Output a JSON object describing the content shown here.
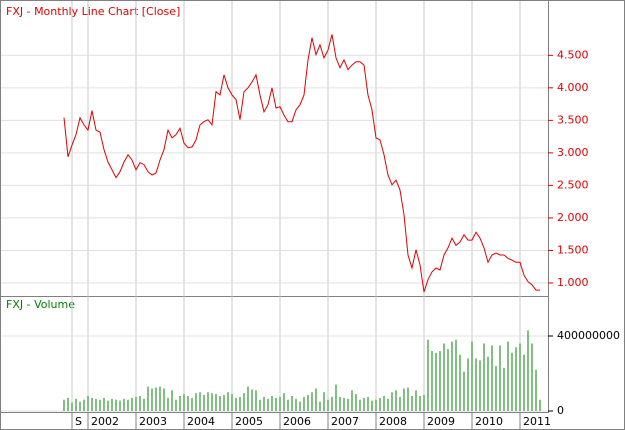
{
  "chart_data": [
    {
      "type": "line",
      "title": "FXJ - Monthly Line Chart [Close]",
      "color": "#e00000",
      "grid": true,
      "ylim": [
        0.8,
        5.35
      ],
      "yticks": [
        {
          "value": 1,
          "label": "1.000"
        },
        {
          "value": 1.5,
          "label": "1.500"
        },
        {
          "value": 2,
          "label": "2.000"
        },
        {
          "value": 2.5,
          "label": "2.500"
        },
        {
          "value": 3,
          "label": "3.000"
        },
        {
          "value": 3.5,
          "label": "3.500"
        },
        {
          "value": 4,
          "label": "4.000"
        },
        {
          "value": 4.5,
          "label": "4.500"
        }
      ],
      "values": [
        3.54,
        2.94,
        3.12,
        3.28,
        3.54,
        3.43,
        3.35,
        3.65,
        3.35,
        3.32,
        3.05,
        2.86,
        2.74,
        2.62,
        2.71,
        2.86,
        2.97,
        2.89,
        2.74,
        2.85,
        2.82,
        2.71,
        2.66,
        2.69,
        2.89,
        3.05,
        3.35,
        3.23,
        3.28,
        3.38,
        3.15,
        3.08,
        3.09,
        3.2,
        3.43,
        3.48,
        3.51,
        3.43,
        3.94,
        3.89,
        4.2,
        4.0,
        3.89,
        3.82,
        3.51,
        3.94,
        4.0,
        4.09,
        4.2,
        3.89,
        3.63,
        3.74,
        4.0,
        3.69,
        3.71,
        3.58,
        3.48,
        3.48,
        3.66,
        3.74,
        3.89,
        4.43,
        4.77,
        4.51,
        4.66,
        4.46,
        4.58,
        4.82,
        4.46,
        4.31,
        4.43,
        4.28,
        4.35,
        4.4,
        4.4,
        4.35,
        3.89,
        3.66,
        3.23,
        3.2,
        2.97,
        2.66,
        2.51,
        2.58,
        2.43,
        2.05,
        1.43,
        1.23,
        1.51,
        1.28,
        0.86,
        1.05,
        1.17,
        1.23,
        1.2,
        1.43,
        1.54,
        1.69,
        1.58,
        1.63,
        1.74,
        1.66,
        1.66,
        1.78,
        1.69,
        1.54,
        1.32,
        1.43,
        1.46,
        1.43,
        1.43,
        1.38,
        1.35,
        1.32,
        1.32,
        1.12,
        1.02,
        0.97,
        0.89,
        0.89
      ]
    },
    {
      "type": "bar",
      "title": "FXJ - Volume",
      "color": "#008000",
      "grid": true,
      "ylim": [
        0,
        600000000
      ],
      "yticks": [
        0,
        400000000
      ],
      "categories": [
        null,
        null,
        "S",
        null,
        null,
        null,
        "2002",
        null,
        null,
        null,
        null,
        null,
        null,
        null,
        null,
        null,
        null,
        null,
        "2003",
        null,
        null,
        null,
        null,
        null,
        null,
        null,
        null,
        null,
        null,
        null,
        "2004",
        null,
        null,
        null,
        null,
        null,
        null,
        null,
        null,
        null,
        null,
        null,
        "2005",
        null,
        null,
        null,
        null,
        null,
        null,
        null,
        null,
        null,
        null,
        null,
        "2006",
        null,
        null,
        null,
        null,
        null,
        null,
        null,
        null,
        null,
        null,
        null,
        "2007",
        null,
        null,
        null,
        null,
        null,
        null,
        null,
        null,
        null,
        null,
        null,
        "2008",
        null,
        null,
        null,
        null,
        null,
        null,
        null,
        null,
        null,
        null,
        null,
        "2009",
        null,
        null,
        null,
        null,
        null,
        null,
        null,
        null,
        null,
        null,
        null,
        "2010",
        null,
        null,
        null,
        null,
        null,
        null,
        null,
        null,
        null,
        null,
        null,
        "2011",
        null,
        null,
        null,
        null,
        null
      ],
      "values": [
        60000000,
        70000000,
        45000000,
        65000000,
        50000000,
        60000000,
        80000000,
        70000000,
        65000000,
        60000000,
        70000000,
        55000000,
        65000000,
        60000000,
        55000000,
        65000000,
        60000000,
        70000000,
        75000000,
        80000000,
        65000000,
        130000000,
        120000000,
        125000000,
        130000000,
        120000000,
        70000000,
        110000000,
        60000000,
        80000000,
        90000000,
        80000000,
        70000000,
        95000000,
        100000000,
        85000000,
        100000000,
        95000000,
        90000000,
        80000000,
        85000000,
        100000000,
        90000000,
        70000000,
        75000000,
        95000000,
        130000000,
        115000000,
        110000000,
        60000000,
        75000000,
        65000000,
        80000000,
        70000000,
        75000000,
        95000000,
        60000000,
        80000000,
        65000000,
        50000000,
        75000000,
        85000000,
        100000000,
        120000000,
        50000000,
        100000000,
        60000000,
        75000000,
        140000000,
        75000000,
        70000000,
        65000000,
        110000000,
        90000000,
        60000000,
        70000000,
        75000000,
        55000000,
        60000000,
        70000000,
        80000000,
        65000000,
        100000000,
        110000000,
        75000000,
        120000000,
        125000000,
        80000000,
        110000000,
        80000000,
        85000000,
        380000000,
        320000000,
        310000000,
        320000000,
        360000000,
        330000000,
        370000000,
        380000000,
        300000000,
        210000000,
        280000000,
        370000000,
        280000000,
        270000000,
        360000000,
        290000000,
        350000000,
        240000000,
        350000000,
        230000000,
        370000000,
        310000000,
        340000000,
        360000000,
        300000000,
        430000000,
        360000000,
        220000000,
        60000000
      ]
    }
  ]
}
